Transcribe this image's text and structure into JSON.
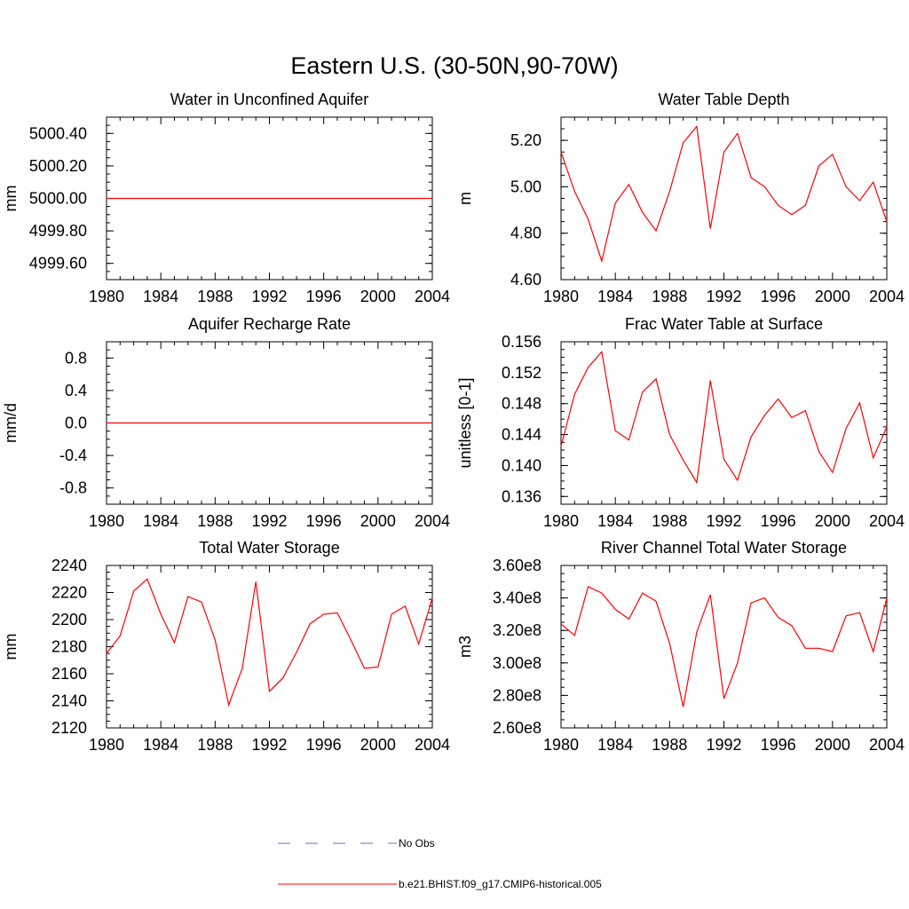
{
  "figure_title": "Eastern U.S. (30-50N,90-70W)",
  "series_names": {
    "obs": "No Obs",
    "model": "b.e21.BHIST.f09_g17.CMIP6-historical.005"
  },
  "colors": {
    "model": "#ff0000",
    "obs": "#6b6bcf",
    "axis": "#000000"
  },
  "chart_data": [
    {
      "type": "line",
      "title": "Water in Unconfined Aquifer",
      "xlabel": "",
      "ylabel": "mm",
      "xlim": [
        1980,
        2004
      ],
      "ylim": [
        4999.5,
        5000.5
      ],
      "xticks": [
        1980,
        1984,
        1988,
        1992,
        1996,
        2000,
        2004
      ],
      "xtick_labels": [
        "1980",
        "1984",
        "1988",
        "1992",
        "1996",
        "2000",
        "2004"
      ],
      "yticks": [
        4999.6,
        4999.8,
        5000.0,
        5000.2,
        5000.4
      ],
      "ytick_labels": [
        "4999.60",
        "4999.80",
        "5000.00",
        "5000.20",
        "5000.40"
      ],
      "x": [
        1980,
        1981,
        1982,
        1983,
        1984,
        1985,
        1986,
        1987,
        1988,
        1989,
        1990,
        1991,
        1992,
        1993,
        1994,
        1995,
        1996,
        1997,
        1998,
        1999,
        2000,
        2001,
        2002,
        2003,
        2004
      ],
      "series": [
        {
          "name": "b.e21.BHIST.f09_g17.CMIP6-historical.005",
          "values": [
            5000,
            5000,
            5000,
            5000,
            5000,
            5000,
            5000,
            5000,
            5000,
            5000,
            5000,
            5000,
            5000,
            5000,
            5000,
            5000,
            5000,
            5000,
            5000,
            5000,
            5000,
            5000,
            5000,
            5000,
            5000
          ]
        }
      ]
    },
    {
      "type": "line",
      "title": "Water Table Depth",
      "xlabel": "",
      "ylabel": "m",
      "xlim": [
        1980,
        2004
      ],
      "ylim": [
        4.6,
        5.3
      ],
      "xticks": [
        1980,
        1984,
        1988,
        1992,
        1996,
        2000,
        2004
      ],
      "xtick_labels": [
        "1980",
        "1984",
        "1988",
        "1992",
        "1996",
        "2000",
        "2004"
      ],
      "yticks": [
        4.6,
        4.8,
        5.0,
        5.2
      ],
      "ytick_labels": [
        "4.60",
        "4.80",
        "5.00",
        "5.20"
      ],
      "x": [
        1980,
        1981,
        1982,
        1983,
        1984,
        1985,
        1986,
        1987,
        1988,
        1989,
        1990,
        1991,
        1992,
        1993,
        1994,
        1995,
        1996,
        1997,
        1998,
        1999,
        2000,
        2001,
        2002,
        2003,
        2004
      ],
      "series": [
        {
          "name": "b.e21.BHIST.f09_g17.CMIP6-historical.005",
          "values": [
            5.15,
            4.98,
            4.86,
            4.68,
            4.93,
            5.01,
            4.89,
            4.81,
            4.98,
            5.19,
            5.26,
            4.82,
            5.15,
            5.23,
            5.04,
            5.0,
            4.92,
            4.88,
            4.92,
            5.09,
            5.14,
            5.0,
            4.94,
            5.02,
            4.85
          ]
        }
      ]
    },
    {
      "type": "line",
      "title": "Aquifer Recharge Rate",
      "xlabel": "",
      "ylabel": "mm/d",
      "xlim": [
        1980,
        2004
      ],
      "ylim": [
        -1.0,
        1.0
      ],
      "xticks": [
        1980,
        1984,
        1988,
        1992,
        1996,
        2000,
        2004
      ],
      "xtick_labels": [
        "1980",
        "1984",
        "1988",
        "1992",
        "1996",
        "2000",
        "2004"
      ],
      "yticks": [
        -0.8,
        -0.4,
        0.0,
        0.4,
        0.8
      ],
      "ytick_labels": [
        "-0.8",
        "-0.4",
        "0.0",
        "0.4",
        "0.8"
      ],
      "x": [
        1980,
        1981,
        1982,
        1983,
        1984,
        1985,
        1986,
        1987,
        1988,
        1989,
        1990,
        1991,
        1992,
        1993,
        1994,
        1995,
        1996,
        1997,
        1998,
        1999,
        2000,
        2001,
        2002,
        2003,
        2004
      ],
      "series": [
        {
          "name": "b.e21.BHIST.f09_g17.CMIP6-historical.005",
          "values": [
            0,
            0,
            0,
            0,
            0,
            0,
            0,
            0,
            0,
            0,
            0,
            0,
            0,
            0,
            0,
            0,
            0,
            0,
            0,
            0,
            0,
            0,
            0,
            0,
            0
          ]
        }
      ]
    },
    {
      "type": "line",
      "title": "Frac Water Table at Surface",
      "xlabel": "",
      "ylabel": "unitless [0-1]",
      "xlim": [
        1980,
        2004
      ],
      "ylim": [
        0.135,
        0.156
      ],
      "xticks": [
        1980,
        1984,
        1988,
        1992,
        1996,
        2000,
        2004
      ],
      "xtick_labels": [
        "1980",
        "1984",
        "1988",
        "1992",
        "1996",
        "2000",
        "2004"
      ],
      "yticks": [
        0.136,
        0.14,
        0.144,
        0.148,
        0.152,
        0.156
      ],
      "ytick_labels": [
        "0.136",
        "0.140",
        "0.144",
        "0.148",
        "0.152",
        "0.156"
      ],
      "x": [
        1980,
        1981,
        1982,
        1983,
        1984,
        1985,
        1986,
        1987,
        1988,
        1989,
        1990,
        1991,
        1992,
        1993,
        1994,
        1995,
        1996,
        1997,
        1998,
        1999,
        2000,
        2001,
        2002,
        2003,
        2004
      ],
      "series": [
        {
          "name": "b.e21.BHIST.f09_g17.CMIP6-historical.005",
          "values": [
            0.1425,
            0.1492,
            0.1527,
            0.1547,
            0.1445,
            0.1433,
            0.1495,
            0.1512,
            0.144,
            0.1407,
            0.1378,
            0.151,
            0.1408,
            0.1381,
            0.1437,
            0.1465,
            0.1486,
            0.1462,
            0.1471,
            0.1418,
            0.1391,
            0.1448,
            0.1481,
            0.141,
            0.145
          ]
        }
      ]
    },
    {
      "type": "line",
      "title": "Total Water Storage",
      "xlabel": "",
      "ylabel": "mm",
      "xlim": [
        1980,
        2004
      ],
      "ylim": [
        2120,
        2240
      ],
      "xticks": [
        1980,
        1984,
        1988,
        1992,
        1996,
        2000,
        2004
      ],
      "xtick_labels": [
        "1980",
        "1984",
        "1988",
        "1992",
        "1996",
        "2000",
        "2004"
      ],
      "yticks": [
        2120,
        2140,
        2160,
        2180,
        2200,
        2220,
        2240
      ],
      "ytick_labels": [
        "2120",
        "2140",
        "2160",
        "2180",
        "2200",
        "2220",
        "2240"
      ],
      "x": [
        1980,
        1981,
        1982,
        1983,
        1984,
        1985,
        1986,
        1987,
        1988,
        1989,
        1990,
        1991,
        1992,
        1993,
        1994,
        1995,
        1996,
        1997,
        1998,
        1999,
        2000,
        2001,
        2002,
        2003,
        2004
      ],
      "series": [
        {
          "name": "b.e21.BHIST.f09_g17.CMIP6-historical.005",
          "values": [
            2175,
            2188,
            2221,
            2230,
            2204,
            2183,
            2217,
            2213,
            2185,
            2137,
            2164,
            2228,
            2147,
            2157,
            2176,
            2197,
            2204,
            2205,
            2185,
            2164,
            2165,
            2204,
            2210,
            2182,
            2216
          ]
        }
      ]
    },
    {
      "type": "line",
      "title": "River Channel Total Water Storage",
      "xlabel": "",
      "ylabel": "m3",
      "xlim": [
        1980,
        2004
      ],
      "ylim": [
        260000000.0,
        360000000.0
      ],
      "xticks": [
        1980,
        1984,
        1988,
        1992,
        1996,
        2000,
        2004
      ],
      "xtick_labels": [
        "1980",
        "1984",
        "1988",
        "1992",
        "1996",
        "2000",
        "2004"
      ],
      "yticks": [
        260000000.0,
        280000000.0,
        300000000.0,
        320000000.0,
        340000000.0,
        360000000.0
      ],
      "ytick_labels": [
        "2.60e8",
        "2.80e8",
        "3.00e8",
        "3.20e8",
        "3.40e8",
        "3.60e8"
      ],
      "x": [
        1980,
        1981,
        1982,
        1983,
        1984,
        1985,
        1986,
        1987,
        1988,
        1989,
        1990,
        1991,
        1992,
        1993,
        1994,
        1995,
        1996,
        1997,
        1998,
        1999,
        2000,
        2001,
        2002,
        2003,
        2004
      ],
      "series": [
        {
          "name": "b.e21.BHIST.f09_g17.CMIP6-historical.005",
          "values": [
            324000000.0,
            317000000.0,
            347000000.0,
            343000000.0,
            333000000.0,
            327000000.0,
            343000000.0,
            338000000.0,
            312000000.0,
            273000000.0,
            319000000.0,
            342000000.0,
            278000000.0,
            300000000.0,
            337000000.0,
            340000000.0,
            328000000.0,
            323000000.0,
            309000000.0,
            309000000.0,
            307000000.0,
            329000000.0,
            331000000.0,
            307000000.0,
            340000000.0
          ]
        }
      ]
    }
  ]
}
